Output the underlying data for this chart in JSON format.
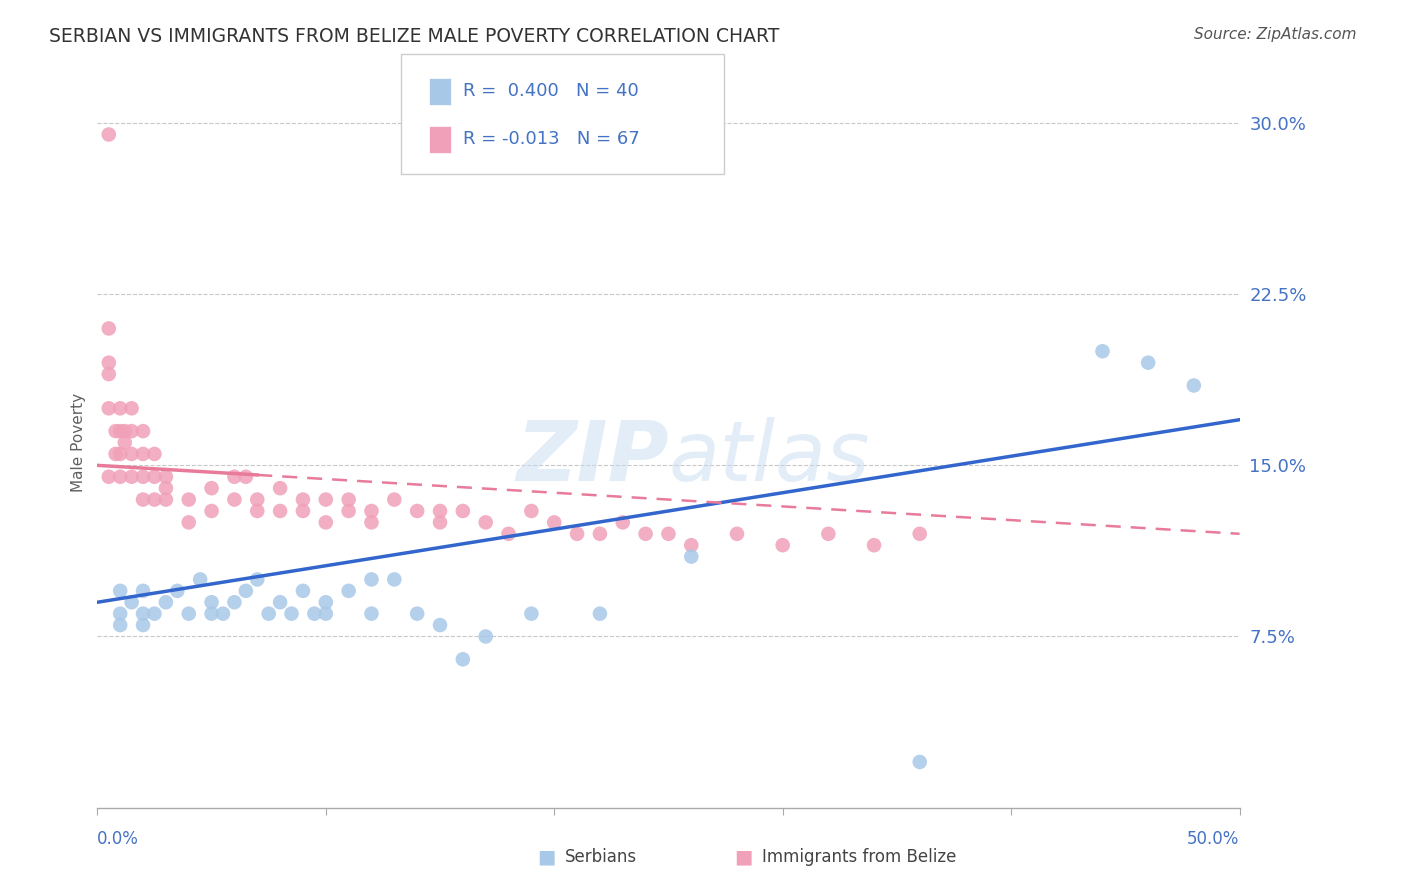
{
  "title": "SERBIAN VS IMMIGRANTS FROM BELIZE MALE POVERTY CORRELATION CHART",
  "source": "Source: ZipAtlas.com",
  "ylabel": "Male Poverty",
  "xlim": [
    0.0,
    0.5
  ],
  "ylim": [
    0.0,
    0.32
  ],
  "watermark": "ZIPatlas",
  "legend1_R": "R =  0.400",
  "legend1_N": "N = 40",
  "legend2_R": "R = -0.013",
  "legend2_N": "N = 67",
  "legend_label1": "Serbians",
  "legend_label2": "Immigrants from Belize",
  "blue_color": "#A8C8E8",
  "pink_color": "#F0A0B8",
  "blue_line_color": "#3366CC",
  "pink_line_color": "#E87A9A",
  "text_color": "#4472C4",
  "title_color": "#333333",
  "serbian_x": [
    0.01,
    0.01,
    0.01,
    0.015,
    0.02,
    0.02,
    0.02,
    0.025,
    0.03,
    0.035,
    0.04,
    0.045,
    0.05,
    0.05,
    0.055,
    0.06,
    0.065,
    0.07,
    0.075,
    0.08,
    0.085,
    0.09,
    0.095,
    0.1,
    0.1,
    0.11,
    0.12,
    0.12,
    0.13,
    0.14,
    0.15,
    0.16,
    0.17,
    0.19,
    0.22,
    0.26,
    0.36,
    0.44,
    0.46,
    0.48
  ],
  "serbian_y": [
    0.095,
    0.085,
    0.08,
    0.09,
    0.095,
    0.085,
    0.08,
    0.085,
    0.09,
    0.095,
    0.085,
    0.1,
    0.09,
    0.085,
    0.085,
    0.09,
    0.095,
    0.1,
    0.085,
    0.09,
    0.085,
    0.095,
    0.085,
    0.085,
    0.09,
    0.095,
    0.085,
    0.1,
    0.1,
    0.085,
    0.08,
    0.065,
    0.075,
    0.085,
    0.085,
    0.11,
    0.02,
    0.2,
    0.195,
    0.185
  ],
  "belize_x": [
    0.005,
    0.005,
    0.005,
    0.005,
    0.005,
    0.005,
    0.008,
    0.008,
    0.01,
    0.01,
    0.01,
    0.01,
    0.012,
    0.012,
    0.015,
    0.015,
    0.015,
    0.015,
    0.02,
    0.02,
    0.02,
    0.02,
    0.025,
    0.025,
    0.025,
    0.03,
    0.03,
    0.03,
    0.04,
    0.04,
    0.05,
    0.05,
    0.06,
    0.06,
    0.065,
    0.07,
    0.07,
    0.08,
    0.08,
    0.09,
    0.09,
    0.1,
    0.1,
    0.11,
    0.11,
    0.12,
    0.12,
    0.13,
    0.14,
    0.15,
    0.15,
    0.16,
    0.17,
    0.18,
    0.19,
    0.2,
    0.21,
    0.22,
    0.23,
    0.24,
    0.25,
    0.26,
    0.28,
    0.3,
    0.32,
    0.34,
    0.36
  ],
  "belize_y": [
    0.295,
    0.21,
    0.195,
    0.19,
    0.175,
    0.145,
    0.165,
    0.155,
    0.175,
    0.165,
    0.155,
    0.145,
    0.165,
    0.16,
    0.175,
    0.165,
    0.155,
    0.145,
    0.165,
    0.155,
    0.145,
    0.135,
    0.155,
    0.145,
    0.135,
    0.145,
    0.14,
    0.135,
    0.135,
    0.125,
    0.14,
    0.13,
    0.145,
    0.135,
    0.145,
    0.135,
    0.13,
    0.13,
    0.14,
    0.135,
    0.13,
    0.135,
    0.125,
    0.135,
    0.13,
    0.13,
    0.125,
    0.135,
    0.13,
    0.13,
    0.125,
    0.13,
    0.125,
    0.12,
    0.13,
    0.125,
    0.12,
    0.12,
    0.125,
    0.12,
    0.12,
    0.115,
    0.12,
    0.115,
    0.12,
    0.115,
    0.12
  ]
}
